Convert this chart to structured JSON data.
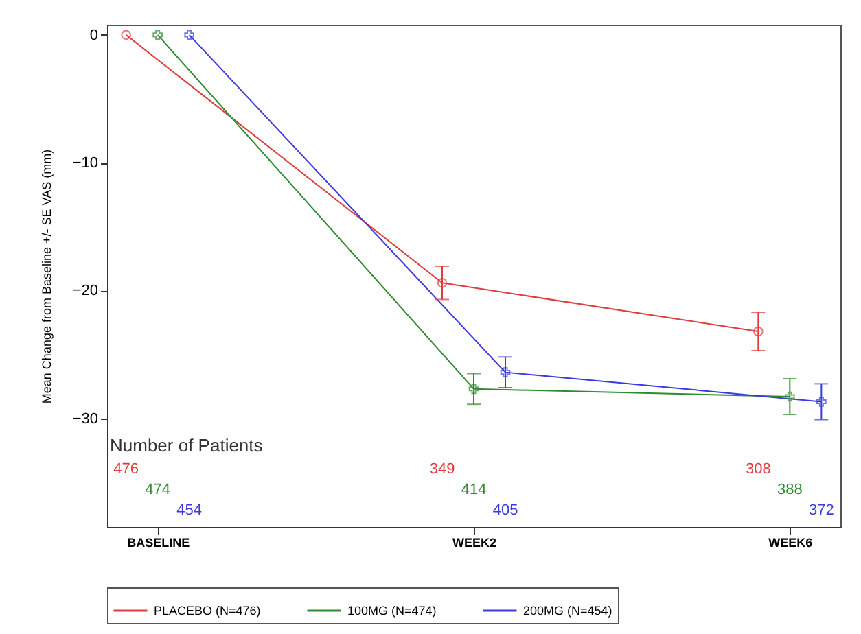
{
  "chart_data": {
    "type": "line",
    "ylabel": "Mean Change from Baseline +/- SE VAS (mm)",
    "categories": [
      "BASELINE",
      "WEEK2",
      "WEEK6"
    ],
    "series": [
      {
        "name": "PLACEBO (N=476)",
        "color": "#e03c3c",
        "marker": "circle",
        "values": [
          0,
          -19.4,
          -23.2
        ],
        "errors": [
          null,
          1.3,
          1.5
        ]
      },
      {
        "name": "100MG (N=474)",
        "color": "#2e8b2e",
        "marker": "cross",
        "values": [
          0,
          -27.7,
          -28.3
        ],
        "errors": [
          null,
          1.2,
          1.4
        ]
      },
      {
        "name": "200MG (N=454)",
        "color": "#3a3ae0",
        "marker": "cross",
        "values": [
          0,
          -26.4,
          -28.7
        ],
        "errors": [
          null,
          1.2,
          1.4
        ]
      }
    ],
    "ylim": [
      -38.5,
      0.8
    ],
    "yticks": [
      -30,
      -20,
      -10,
      0
    ],
    "grid": false,
    "legend": "bottom",
    "annotations": [
      "Number of Patients",
      "476",
      "474",
      "454",
      "349",
      "414",
      "405",
      "308",
      "388",
      "372"
    ]
  }
}
